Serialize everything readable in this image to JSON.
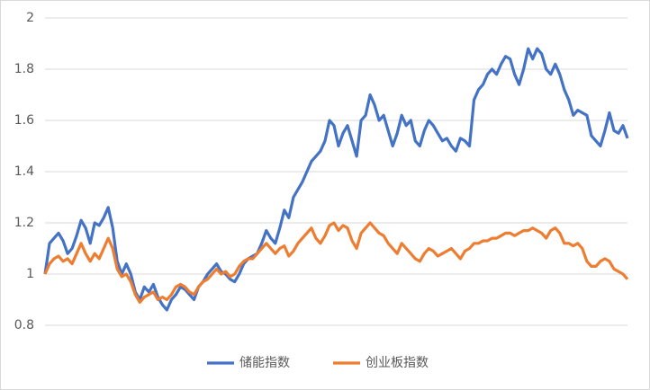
{
  "chart_data": {
    "type": "line",
    "categories": [
      null,
      null,
      null,
      null,
      null,
      null,
      null,
      null,
      null,
      null,
      null,
      null,
      null,
      null,
      null,
      null,
      null,
      null,
      null,
      null,
      null,
      null,
      null,
      null,
      null,
      null,
      null,
      null,
      null,
      null,
      null,
      null,
      null,
      null,
      null,
      null,
      null,
      null,
      null,
      null,
      null,
      null,
      null,
      null,
      null,
      null,
      null,
      null,
      null,
      null,
      null,
      null,
      null,
      null,
      null,
      null,
      null,
      null,
      null,
      null,
      null,
      null,
      null,
      null,
      null,
      null,
      null,
      null,
      null,
      null,
      null,
      null,
      null,
      null,
      null,
      null,
      null,
      null,
      null,
      null,
      null,
      null,
      null,
      null,
      null,
      null,
      null,
      null,
      null,
      null,
      null,
      null,
      null,
      null,
      null,
      null,
      null,
      null,
      null,
      null,
      null,
      null,
      null,
      null,
      null,
      null,
      null,
      null,
      null,
      null,
      null,
      null,
      null,
      null,
      null,
      null,
      null,
      null,
      null,
      null,
      null,
      null,
      null,
      null,
      null,
      null,
      null,
      null,
      null,
      null
    ],
    "series": [
      {
        "name": "储能指数",
        "color": "#4472c4",
        "values": [
          1.0,
          1.12,
          1.14,
          1.16,
          1.13,
          1.08,
          1.1,
          1.15,
          1.21,
          1.18,
          1.12,
          1.2,
          1.19,
          1.22,
          1.26,
          1.18,
          1.05,
          1.0,
          1.04,
          1.0,
          0.93,
          0.9,
          0.95,
          0.93,
          0.96,
          0.91,
          0.88,
          0.86,
          0.9,
          0.92,
          0.95,
          0.94,
          0.92,
          0.9,
          0.95,
          0.97,
          1.0,
          1.02,
          1.04,
          1.01,
          1.0,
          0.98,
          0.97,
          1.0,
          1.04,
          1.06,
          1.07,
          1.08,
          1.12,
          1.17,
          1.14,
          1.12,
          1.18,
          1.25,
          1.22,
          1.3,
          1.33,
          1.36,
          1.4,
          1.44,
          1.46,
          1.48,
          1.52,
          1.6,
          1.58,
          1.5,
          1.55,
          1.58,
          1.52,
          1.46,
          1.6,
          1.62,
          1.7,
          1.66,
          1.6,
          1.62,
          1.56,
          1.5,
          1.55,
          1.62,
          1.58,
          1.6,
          1.52,
          1.5,
          1.56,
          1.6,
          1.58,
          1.55,
          1.52,
          1.53,
          1.5,
          1.48,
          1.53,
          1.52,
          1.5,
          1.68,
          1.72,
          1.74,
          1.78,
          1.8,
          1.78,
          1.82,
          1.85,
          1.84,
          1.78,
          1.74,
          1.8,
          1.88,
          1.84,
          1.88,
          1.86,
          1.8,
          1.78,
          1.82,
          1.78,
          1.72,
          1.68,
          1.62,
          1.64,
          1.63,
          1.62,
          1.54,
          1.52,
          1.5,
          1.56,
          1.63,
          1.56,
          1.55,
          1.58,
          1.53
        ]
      },
      {
        "name": "创业板指数",
        "color": "#ed7d31",
        "values": [
          1.0,
          1.04,
          1.06,
          1.07,
          1.05,
          1.06,
          1.04,
          1.08,
          1.12,
          1.08,
          1.05,
          1.08,
          1.06,
          1.1,
          1.14,
          1.1,
          1.02,
          0.99,
          1.0,
          0.97,
          0.92,
          0.89,
          0.91,
          0.92,
          0.93,
          0.9,
          0.91,
          0.9,
          0.92,
          0.95,
          0.96,
          0.95,
          0.93,
          0.92,
          0.95,
          0.97,
          0.98,
          1.0,
          1.02,
          1.0,
          1.01,
          0.99,
          1.0,
          1.03,
          1.05,
          1.06,
          1.06,
          1.08,
          1.1,
          1.12,
          1.1,
          1.08,
          1.1,
          1.11,
          1.07,
          1.09,
          1.12,
          1.14,
          1.16,
          1.18,
          1.14,
          1.12,
          1.15,
          1.19,
          1.2,
          1.17,
          1.19,
          1.18,
          1.13,
          1.1,
          1.16,
          1.18,
          1.2,
          1.18,
          1.16,
          1.15,
          1.12,
          1.1,
          1.08,
          1.12,
          1.1,
          1.08,
          1.06,
          1.05,
          1.08,
          1.1,
          1.09,
          1.07,
          1.08,
          1.09,
          1.1,
          1.08,
          1.06,
          1.09,
          1.1,
          1.12,
          1.12,
          1.13,
          1.13,
          1.14,
          1.14,
          1.15,
          1.16,
          1.16,
          1.15,
          1.16,
          1.17,
          1.17,
          1.18,
          1.17,
          1.16,
          1.14,
          1.17,
          1.18,
          1.16,
          1.12,
          1.12,
          1.11,
          1.12,
          1.1,
          1.05,
          1.03,
          1.03,
          1.05,
          1.06,
          1.05,
          1.02,
          1.01,
          1.0,
          0.98
        ]
      }
    ],
    "ylim": [
      0.8,
      2
    ],
    "yticks": [
      0.8,
      1,
      1.2,
      1.4,
      1.6,
      1.8,
      2
    ],
    "grid": true,
    "legend": "bottom"
  }
}
